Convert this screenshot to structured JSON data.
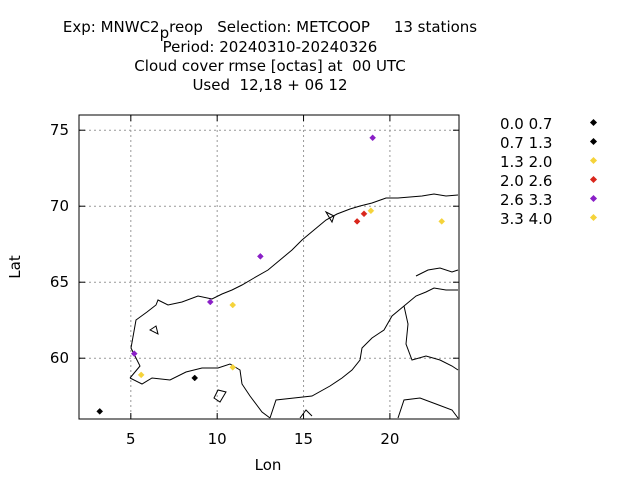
{
  "title": {
    "line1_prefix": "Exp: MNWC2",
    "line1_sub": "p",
    "line1_suffix": "reop   Selection: METCOOP     13 stations",
    "line2": "Period: 20240310-20240326",
    "line3": "Cloud cover rmse [octas] at  00 UTC",
    "line4": "Used  12,18 + 06 12"
  },
  "chart_data": {
    "type": "scatter",
    "xlabel": "Lon",
    "ylabel": "Lat",
    "xlim": [
      2,
      24
    ],
    "ylim": [
      56,
      76
    ],
    "xticks": [
      5,
      10,
      15,
      20
    ],
    "yticks": [
      60,
      65,
      70,
      75
    ],
    "grid": true,
    "legend_position": "right",
    "legend": [
      {
        "label": "0.0 0.7",
        "color": "#000000"
      },
      {
        "label": "0.7 1.3",
        "color": "#000000"
      },
      {
        "label": "1.3 2.0",
        "color": "#f5d33a"
      },
      {
        "label": "2.0 2.6",
        "color": "#d9261c"
      },
      {
        "label": "2.6 3.3",
        "color": "#8a1fc7"
      },
      {
        "label": "3.3 4.0",
        "color": "#f5d33a"
      }
    ],
    "points": [
      {
        "lon": 3.2,
        "lat": 56.5,
        "bin": 1
      },
      {
        "lon": 8.7,
        "lat": 58.7,
        "bin": 1
      },
      {
        "lon": 5.2,
        "lat": 60.3,
        "bin": 4
      },
      {
        "lon": 5.6,
        "lat": 58.9,
        "bin": 2
      },
      {
        "lon": 10.9,
        "lat": 59.4,
        "bin": 2
      },
      {
        "lon": 10.9,
        "lat": 63.5,
        "bin": 2
      },
      {
        "lon": 9.6,
        "lat": 63.7,
        "bin": 4
      },
      {
        "lon": 12.5,
        "lat": 66.7,
        "bin": 4
      },
      {
        "lon": 18.1,
        "lat": 69.0,
        "bin": 3
      },
      {
        "lon": 18.9,
        "lat": 69.7,
        "bin": 5
      },
      {
        "lon": 23.0,
        "lat": 69.0,
        "bin": 5
      },
      {
        "lon": 19.0,
        "lat": 74.5,
        "bin": 4
      },
      {
        "lon": 18.5,
        "lat": 69.5,
        "bin": 3
      }
    ]
  }
}
